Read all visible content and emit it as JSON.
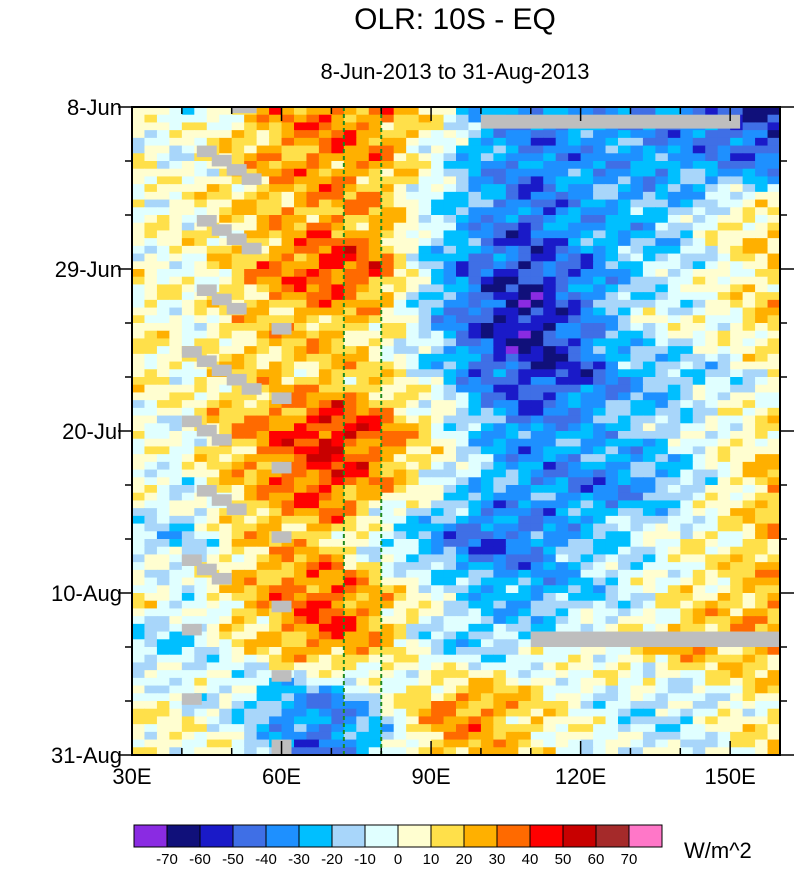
{
  "chart_data": {
    "type": "heatmap",
    "title": "OLR: 10S - EQ",
    "subtitle": "8-Jun-2013 to 31-Aug-2013",
    "x_axis": {
      "range": [
        30,
        160
      ],
      "ticks": [
        30,
        60,
        90,
        120,
        150
      ],
      "tick_labels": [
        "30E",
        "60E",
        "90E",
        "120E",
        "150E"
      ],
      "minor_step": 10
    },
    "y_axis": {
      "range_days": [
        0,
        84
      ],
      "ticks": [
        0,
        21,
        42,
        63,
        84
      ],
      "tick_labels": [
        "8-Jun",
        "29-Jun",
        "20-Jul",
        "10-Aug",
        "31-Aug"
      ],
      "minor_step_days": 7,
      "start_date": "2013-06-08",
      "end_date": "2013-08-31",
      "direction": "top-to-bottom"
    },
    "reference_lines": [
      {
        "x": 72.5,
        "color": "#1f8a1f",
        "style": "dashed"
      },
      {
        "x": 80,
        "color": "#1f8a1f",
        "style": "dashed"
      }
    ],
    "colorbar": {
      "units": "W/m^2",
      "labels": [
        "-70",
        "-60",
        "-50",
        "-40",
        "-30",
        "-20",
        "-10",
        "0",
        "10",
        "20",
        "30",
        "40",
        "50",
        "60",
        "70"
      ],
      "levels": [
        -70,
        -60,
        -50,
        -40,
        -30,
        -20,
        -10,
        0,
        10,
        20,
        30,
        40,
        50,
        60,
        70
      ],
      "colors": [
        "#8a2be2",
        "#10107a",
        "#1a1ac8",
        "#3f6fe6",
        "#1e90ff",
        "#00bfff",
        "#a8d6fa",
        "#e0ffff",
        "#fffed0",
        "#ffe04a",
        "#ffb000",
        "#ff6a00",
        "#ff0000",
        "#c80000",
        "#a52a2a",
        "#ff77c8"
      ]
    },
    "missing_color": "#bebebe",
    "missing_regions": [
      {
        "lon": [
          100,
          152
        ],
        "day": [
          1.0,
          2.8
        ]
      },
      {
        "lon": [
          110,
          160
        ],
        "day": [
          68.0,
          70.0
        ]
      },
      {
        "lon": [
          50,
          55
        ],
        "day": [
          0,
          0.8
        ]
      },
      {
        "lon": [
          43,
          47
        ],
        "day": [
          5,
          6.5
        ]
      },
      {
        "lon": [
          46,
          50
        ],
        "day": [
          6.2,
          7.7
        ]
      },
      {
        "lon": [
          49,
          53
        ],
        "day": [
          7.4,
          8.9
        ]
      },
      {
        "lon": [
          52,
          56
        ],
        "day": [
          8.6,
          10.1
        ]
      },
      {
        "lon": [
          43,
          47
        ],
        "day": [
          14,
          15.5
        ]
      },
      {
        "lon": [
          46,
          50
        ],
        "day": [
          15.2,
          16.7
        ]
      },
      {
        "lon": [
          49,
          53
        ],
        "day": [
          16.4,
          17.9
        ]
      },
      {
        "lon": [
          52,
          56
        ],
        "day": [
          17.6,
          19.1
        ]
      },
      {
        "lon": [
          43,
          47
        ],
        "day": [
          23,
          24.5
        ]
      },
      {
        "lon": [
          46,
          50
        ],
        "day": [
          24.2,
          25.7
        ]
      },
      {
        "lon": [
          49,
          53
        ],
        "day": [
          25.4,
          26.9
        ]
      },
      {
        "lon": [
          58,
          62
        ],
        "day": [
          28,
          29.5
        ]
      },
      {
        "lon": [
          40,
          44
        ],
        "day": [
          31,
          32.5
        ]
      },
      {
        "lon": [
          43,
          47
        ],
        "day": [
          32.2,
          33.7
        ]
      },
      {
        "lon": [
          46,
          50
        ],
        "day": [
          33.4,
          34.9
        ]
      },
      {
        "lon": [
          49,
          53
        ],
        "day": [
          34.6,
          36.1
        ]
      },
      {
        "lon": [
          52,
          56
        ],
        "day": [
          35.8,
          37.3
        ]
      },
      {
        "lon": [
          58,
          62
        ],
        "day": [
          37,
          38.5
        ]
      },
      {
        "lon": [
          40,
          44
        ],
        "day": [
          40,
          41.5
        ]
      },
      {
        "lon": [
          43,
          47
        ],
        "day": [
          41.2,
          42.7
        ]
      },
      {
        "lon": [
          46,
          50
        ],
        "day": [
          42.4,
          43.9
        ]
      },
      {
        "lon": [
          58,
          62
        ],
        "day": [
          46,
          47.5
        ]
      },
      {
        "lon": [
          43,
          47
        ],
        "day": [
          49,
          50.5
        ]
      },
      {
        "lon": [
          46,
          50
        ],
        "day": [
          50.2,
          51.7
        ]
      },
      {
        "lon": [
          49,
          53
        ],
        "day": [
          51.4,
          52.9
        ]
      },
      {
        "lon": [
          58,
          62
        ],
        "day": [
          55,
          56.5
        ]
      },
      {
        "lon": [
          40,
          44
        ],
        "day": [
          58,
          59.5
        ]
      },
      {
        "lon": [
          43,
          47
        ],
        "day": [
          59.2,
          60.7
        ]
      },
      {
        "lon": [
          46,
          50
        ],
        "day": [
          60.4,
          61.9
        ]
      },
      {
        "lon": [
          58,
          62
        ],
        "day": [
          64,
          65.5
        ]
      },
      {
        "lon": [
          40,
          44
        ],
        "day": [
          67,
          68.5
        ]
      },
      {
        "lon": [
          58,
          62
        ],
        "day": [
          73,
          74.5
        ]
      },
      {
        "lon": [
          40,
          44
        ],
        "day": [
          76,
          77.5
        ]
      },
      {
        "lon": [
          58,
          62
        ],
        "day": [
          82,
          84
        ]
      }
    ],
    "anomaly_grid": {
      "lon_start": 30,
      "lon_step": 10,
      "day_step": 7,
      "rows": [
        [
          0,
          -5,
          10,
          25,
          35,
          30,
          10,
          -20,
          -40,
          -30,
          -35,
          -40,
          -50,
          -60
        ],
        [
          5,
          0,
          15,
          25,
          30,
          25,
          0,
          -30,
          -40,
          -35,
          -30,
          -30,
          -40,
          -45
        ],
        [
          0,
          5,
          10,
          20,
          25,
          20,
          -10,
          -30,
          -45,
          -30,
          -25,
          -20,
          10,
          15
        ],
        [
          5,
          0,
          15,
          30,
          45,
          35,
          -20,
          -45,
          -55,
          -40,
          -20,
          -10,
          5,
          15
        ],
        [
          10,
          0,
          10,
          20,
          20,
          10,
          -20,
          -50,
          -65,
          -40,
          -10,
          0,
          5,
          20
        ],
        [
          10,
          5,
          15,
          15,
          20,
          10,
          -10,
          -40,
          -55,
          -50,
          -30,
          -20,
          -10,
          5
        ],
        [
          0,
          0,
          20,
          35,
          50,
          35,
          10,
          -20,
          -40,
          -25,
          -20,
          -10,
          5,
          10
        ],
        [
          5,
          -5,
          15,
          30,
          40,
          25,
          0,
          -20,
          -30,
          -40,
          -35,
          -20,
          5,
          25
        ],
        [
          -10,
          -20,
          10,
          20,
          15,
          -15,
          -30,
          -50,
          -40,
          -20,
          -10,
          0,
          10,
          20
        ],
        [
          10,
          -5,
          15,
          30,
          40,
          20,
          0,
          -20,
          -30,
          -20,
          -10,
          5,
          15,
          25
        ],
        [
          -15,
          -20,
          5,
          20,
          35,
          20,
          -15,
          -20,
          -10,
          0,
          10,
          25,
          20,
          30
        ],
        [
          5,
          0,
          -10,
          -30,
          -40,
          -10,
          25,
          30,
          15,
          0,
          -10,
          -15,
          0,
          10
        ],
        [
          10,
          5,
          0,
          -30,
          -45,
          -20,
          20,
          25,
          10,
          0,
          -10,
          -5,
          5,
          15
        ]
      ]
    }
  }
}
